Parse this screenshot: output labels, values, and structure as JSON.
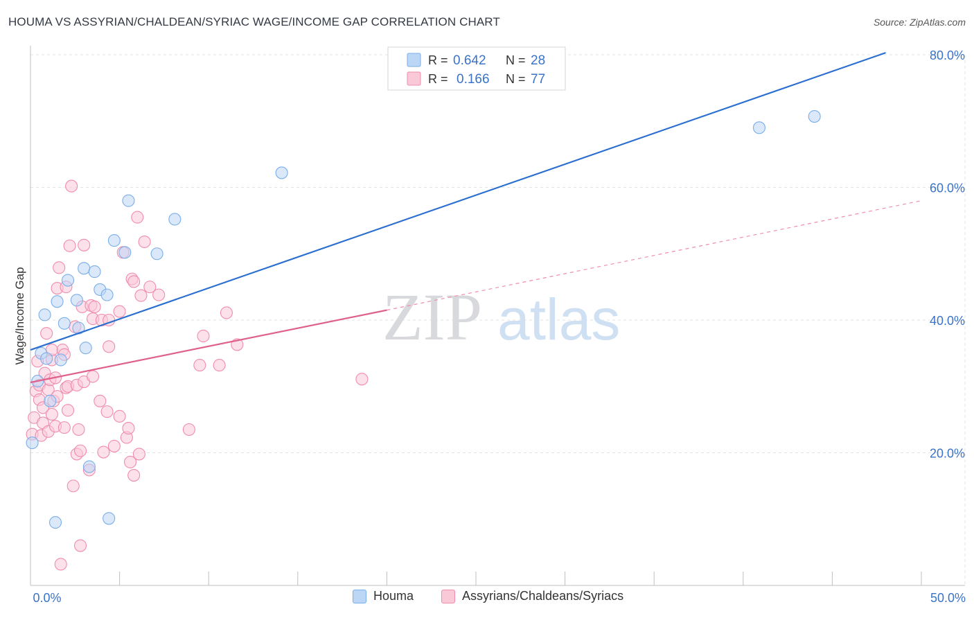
{
  "header": {
    "title": "HOUMA VS ASSYRIAN/CHALDEAN/SYRIAC WAGE/INCOME GAP CORRELATION CHART",
    "source": "Source: ZipAtlas.com"
  },
  "watermark": {
    "zip": "ZIP",
    "atlas": "atlas"
  },
  "colors": {
    "houma": "#7aaee8",
    "houma_fill": "#bcd6f5",
    "houma_line": "#2a6fd0",
    "assyrian": "#f08cab",
    "assyrian_fill": "#f9c9d8",
    "assyrian_line": "#e0608c",
    "value_text": "#3a72c8"
  },
  "legend_top": {
    "rows": [
      {
        "r_label": "R =",
        "r_value": "0.642",
        "n_label": "N =",
        "n_value": "28"
      },
      {
        "r_label": "R =",
        "r_value": "0.166",
        "n_label": "N =",
        "n_value": "77"
      }
    ]
  },
  "legend_bottom": {
    "items": [
      {
        "label": "Houma"
      },
      {
        "label": "Assyrians/Chaldeans/Syriacs"
      }
    ]
  },
  "chart_data": {
    "type": "scatter",
    "title": "HOUMA VS ASSYRIAN/CHALDEAN/SYRIAC WAGE/INCOME GAP CORRELATION CHART",
    "xlabel": "",
    "ylabel": "Wage/Income Gap",
    "xlim": [
      0,
      50
    ],
    "ylim": [
      0,
      80
    ],
    "x_tick_labels": [
      "0.0%",
      "50.0%"
    ],
    "y_ticks": [
      20,
      40,
      60,
      80
    ],
    "y_tick_labels": [
      "20.0%",
      "40.0%",
      "60.0%",
      "80.0%"
    ],
    "grid": true,
    "series": [
      {
        "name": "Houma",
        "R": 0.642,
        "N": 28,
        "trend": {
          "x": [
            0,
            48
          ],
          "y": [
            35.5,
            80.3
          ],
          "style": "solid"
        },
        "points": [
          [
            0.1,
            21.5
          ],
          [
            0.4,
            30.8
          ],
          [
            0.6,
            35.0
          ],
          [
            0.8,
            40.8
          ],
          [
            0.9,
            34.2
          ],
          [
            1.1,
            27.8
          ],
          [
            1.4,
            9.5
          ],
          [
            1.5,
            42.8
          ],
          [
            1.7,
            34.0
          ],
          [
            1.9,
            39.5
          ],
          [
            2.1,
            46.0
          ],
          [
            2.6,
            43.0
          ],
          [
            2.7,
            38.8
          ],
          [
            3.0,
            47.8
          ],
          [
            3.1,
            35.8
          ],
          [
            3.3,
            17.9
          ],
          [
            3.6,
            47.3
          ],
          [
            3.9,
            44.6
          ],
          [
            4.3,
            43.8
          ],
          [
            4.4,
            10.1
          ],
          [
            4.7,
            52.0
          ],
          [
            5.3,
            50.2
          ],
          [
            5.5,
            58.0
          ],
          [
            7.1,
            50.0
          ],
          [
            8.1,
            55.2
          ],
          [
            14.1,
            62.2
          ],
          [
            40.9,
            69.0
          ],
          [
            44.0,
            70.7
          ]
        ]
      },
      {
        "name": "Assyrians/Chaldeans/Syriacs",
        "R": 0.166,
        "N": 77,
        "trend": {
          "x": [
            0,
            20
          ],
          "y": [
            30.6,
            41.5
          ],
          "style": "solid",
          "ext_x": [
            20,
            50
          ],
          "ext_y": [
            41.5,
            58
          ],
          "ext_style": "dashed"
        },
        "points": [
          [
            0.1,
            22.8
          ],
          [
            0.2,
            25.3
          ],
          [
            0.3,
            29.3
          ],
          [
            0.4,
            33.8
          ],
          [
            0.5,
            28.0
          ],
          [
            0.5,
            30.2
          ],
          [
            0.6,
            22.6
          ],
          [
            0.7,
            26.8
          ],
          [
            0.7,
            24.5
          ],
          [
            0.8,
            32.0
          ],
          [
            0.9,
            38.0
          ],
          [
            1.0,
            29.5
          ],
          [
            1.0,
            23.2
          ],
          [
            1.1,
            31.0
          ],
          [
            1.2,
            34.0
          ],
          [
            1.2,
            25.8
          ],
          [
            1.3,
            27.8
          ],
          [
            1.4,
            24.0
          ],
          [
            1.4,
            31.3
          ],
          [
            1.5,
            28.5
          ],
          [
            1.5,
            44.8
          ],
          [
            1.6,
            47.9
          ],
          [
            1.7,
            3.2
          ],
          [
            1.8,
            35.5
          ],
          [
            1.9,
            23.8
          ],
          [
            1.9,
            34.8
          ],
          [
            2.0,
            45.0
          ],
          [
            2.0,
            29.8
          ],
          [
            2.1,
            26.4
          ],
          [
            2.1,
            30.0
          ],
          [
            2.2,
            51.2
          ],
          [
            2.3,
            60.2
          ],
          [
            2.4,
            15.0
          ],
          [
            2.5,
            39.0
          ],
          [
            2.6,
            30.2
          ],
          [
            2.6,
            19.8
          ],
          [
            2.7,
            23.5
          ],
          [
            2.8,
            6.0
          ],
          [
            2.8,
            20.3
          ],
          [
            2.9,
            42.0
          ],
          [
            3.0,
            51.3
          ],
          [
            3.0,
            30.7
          ],
          [
            3.3,
            17.4
          ],
          [
            3.4,
            42.2
          ],
          [
            3.5,
            40.2
          ],
          [
            3.6,
            42.0
          ],
          [
            3.9,
            27.8
          ],
          [
            4.0,
            40.0
          ],
          [
            4.1,
            20.1
          ],
          [
            4.3,
            26.2
          ],
          [
            4.4,
            36.0
          ],
          [
            4.4,
            40.0
          ],
          [
            4.7,
            21.0
          ],
          [
            5.0,
            41.3
          ],
          [
            5.2,
            50.2
          ],
          [
            5.4,
            22.3
          ],
          [
            5.5,
            23.7
          ],
          [
            5.6,
            18.6
          ],
          [
            5.7,
            46.2
          ],
          [
            5.8,
            16.6
          ],
          [
            5.8,
            45.8
          ],
          [
            6.0,
            55.5
          ],
          [
            6.1,
            19.8
          ],
          [
            6.2,
            43.7
          ],
          [
            6.4,
            51.8
          ],
          [
            6.7,
            45.0
          ],
          [
            7.2,
            43.8
          ],
          [
            8.9,
            23.5
          ],
          [
            9.5,
            33.2
          ],
          [
            9.7,
            37.6
          ],
          [
            10.6,
            33.2
          ],
          [
            11.0,
            41.1
          ],
          [
            11.6,
            36.3
          ],
          [
            18.6,
            31.1
          ],
          [
            5.0,
            25.5
          ],
          [
            3.5,
            31.5
          ],
          [
            1.2,
            35.5
          ]
        ]
      }
    ]
  }
}
